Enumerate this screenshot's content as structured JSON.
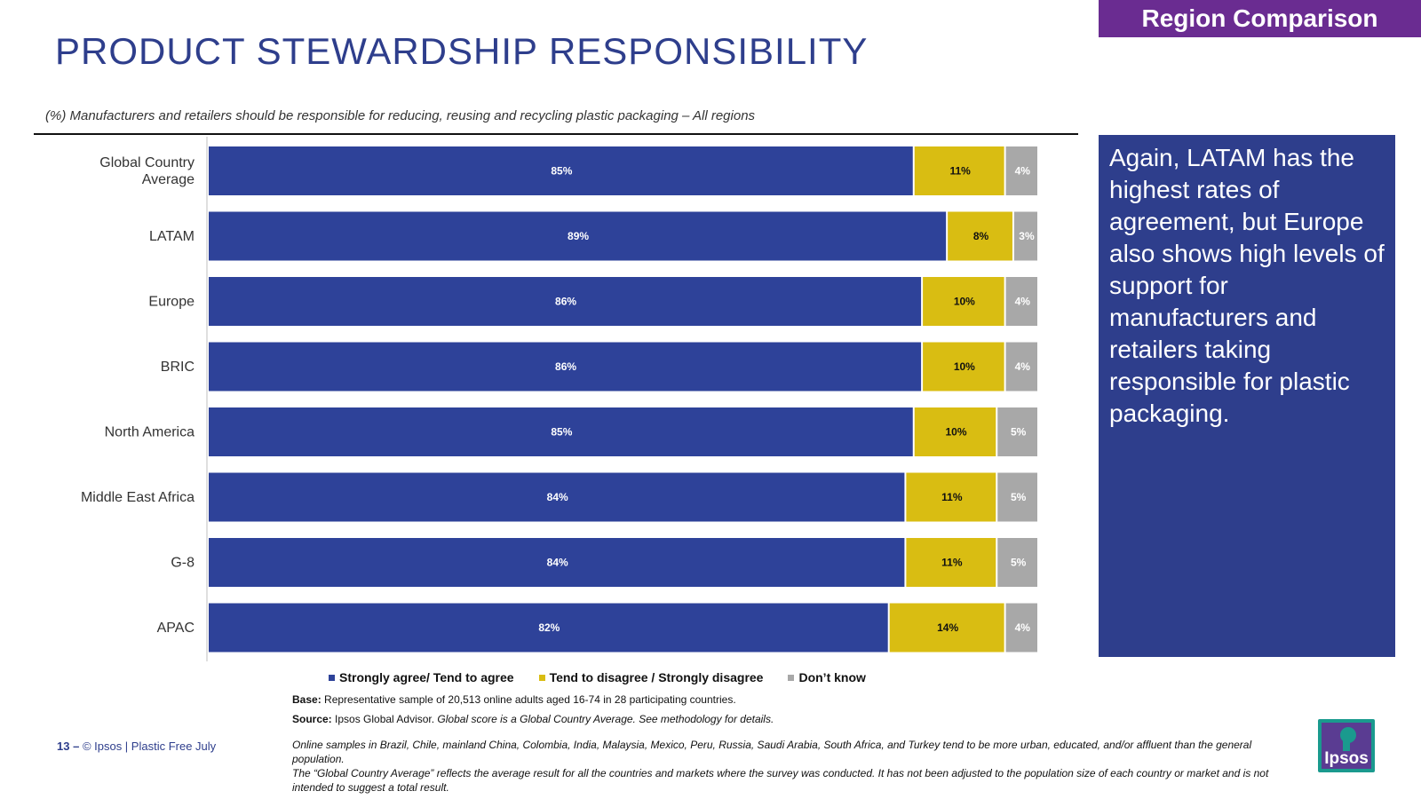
{
  "header": {
    "tag": "Region Comparison",
    "title": "PRODUCT STEWARDSHIP RESPONSIBILITY",
    "subtitle": "(%) Manufacturers and retailers should be responsible for reducing, reusing and recycling plastic packaging – All regions"
  },
  "colors": {
    "agree": "#2e4299",
    "disagree": "#d9bd12",
    "dontknow": "#a8a8a8",
    "note_bg": "#2e3e8c",
    "tag_bg": "#6a2c91"
  },
  "chart_data": {
    "type": "bar",
    "orientation": "horizontal",
    "stacked": true,
    "categories": [
      "Global Country Average",
      "LATAM",
      "Europe",
      "BRIC",
      "North America",
      "Middle East Africa",
      "G-8",
      "APAC"
    ],
    "series": [
      {
        "name": "Strongly agree/ Tend to agree",
        "values": [
          85,
          89,
          86,
          86,
          85,
          84,
          84,
          82
        ],
        "color": "#2e4299"
      },
      {
        "name": "Tend to disagree / Strongly disagree",
        "values": [
          11,
          8,
          10,
          10,
          10,
          11,
          11,
          14
        ],
        "color": "#d9bd12"
      },
      {
        "name": "Don’t know",
        "values": [
          4,
          3,
          4,
          4,
          5,
          5,
          5,
          4
        ],
        "color": "#a8a8a8"
      }
    ],
    "value_suffix": "%",
    "legend": "bottom"
  },
  "note": {
    "text": "Again, LATAM has the highest rates of agreement, but Europe also shows high levels of support for manufacturers and retailers taking responsible for plastic packaging."
  },
  "base": {
    "label": "Base:",
    "text": " Representative sample of 20,513 online adults aged 16-74 in 28 participating countries."
  },
  "source": {
    "label": "Source:",
    "text": " Ipsos Global Advisor. ",
    "italic": "Global score is a Global Country Average. See methodology for details."
  },
  "footnotes": {
    "line1": "Online samples in Brazil, Chile, mainland China, Colombia, India, Malaysia, Mexico, Peru, Russia, Saudi Arabia, South Africa, and Turkey tend to be more urban, educated, and/or affluent than the general population.",
    "line2": "The “Global Country Average” reflects the average result for all the countries and markets where the survey was conducted. It has not been adjusted to the population size of each country or market and is not intended to suggest a total result."
  },
  "footer": {
    "page": "13 –",
    "text": "© Ipsos | Plastic Free July"
  },
  "logo": {
    "text": "Ipsos"
  }
}
